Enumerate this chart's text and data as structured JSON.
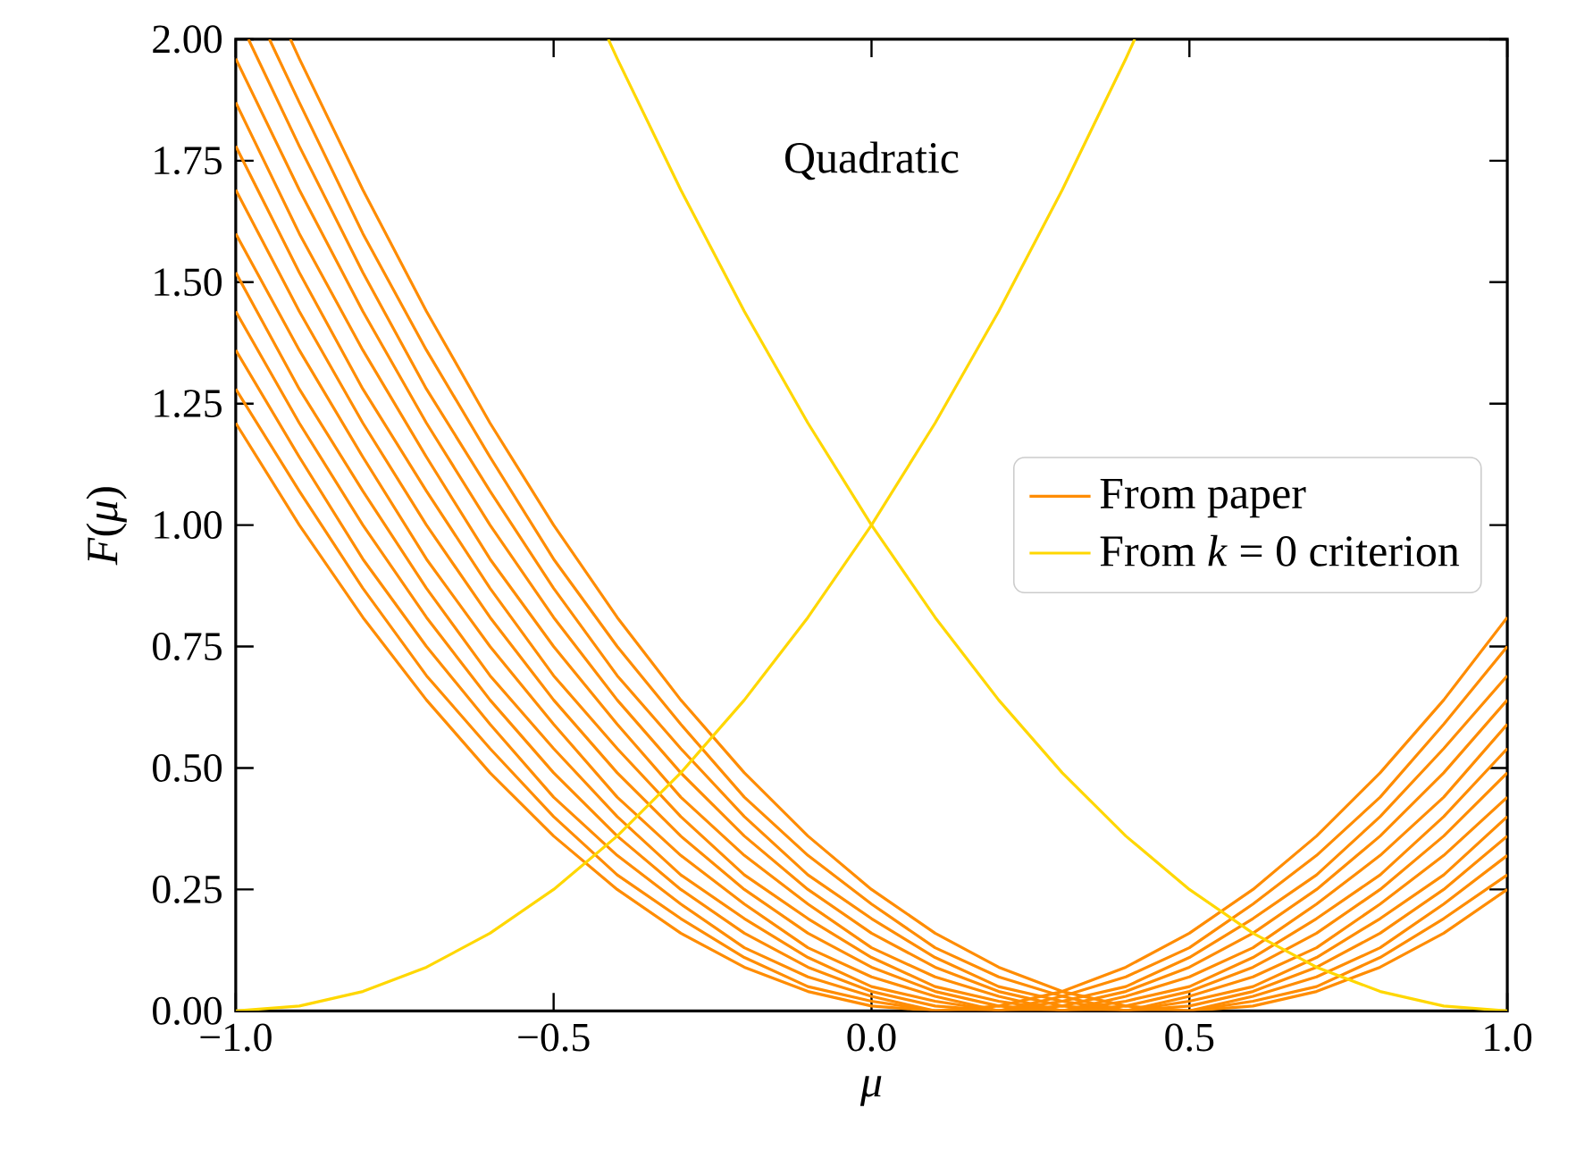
{
  "chart_data": {
    "type": "line",
    "xlabel": "μ",
    "ylabel": "*F*(*μ*)",
    "annotations": [
      "Quadratic"
    ],
    "x": [
      -1,
      -0.9,
      -0.8,
      -0.7,
      -0.6,
      -0.5,
      -0.4,
      -0.3,
      -0.2,
      -0.1,
      0,
      0.1,
      0.2,
      0.3,
      0.4,
      0.5,
      0.6,
      0.7,
      0.8,
      0.9,
      1
    ],
    "series": [
      {
        "name": "From paper",
        "color": "#ff8c00",
        "values": [
          1.21,
          1.0,
          0.81,
          0.64,
          0.49,
          0.36,
          0.25,
          0.16,
          0.09,
          0.04,
          0.01,
          0,
          0.01,
          0.04,
          0.09,
          0.16,
          0.25,
          0.36,
          0.49,
          0.64,
          0.81
        ]
      },
      {
        "color": "#ff8c00",
        "values": [
          1.28,
          1.07,
          0.87,
          0.69,
          0.54,
          0.4,
          0.28,
          0.19,
          0.11,
          0.05,
          0.02,
          0.0,
          0.0,
          0.03,
          0.07,
          0.13,
          0.22,
          0.32,
          0.44,
          0.59,
          0.75
        ]
      },
      {
        "color": "#ff8c00",
        "values": [
          1.36,
          1.14,
          0.93,
          0.75,
          0.59,
          0.44,
          0.32,
          0.22,
          0.13,
          0.07,
          0.03,
          0.0,
          0.0,
          0.02,
          0.05,
          0.11,
          0.19,
          0.28,
          0.4,
          0.54,
          0.69
        ]
      },
      {
        "color": "#ff8c00",
        "values": [
          1.44,
          1.21,
          1.0,
          0.81,
          0.64,
          0.49,
          0.36,
          0.25,
          0.16,
          0.09,
          0.04,
          0.01,
          0,
          0.01,
          0.04,
          0.09,
          0.16,
          0.25,
          0.36,
          0.49,
          0.64
        ]
      },
      {
        "color": "#ff8c00",
        "values": [
          1.52,
          1.28,
          1.07,
          0.87,
          0.69,
          0.54,
          0.4,
          0.28,
          0.19,
          0.11,
          0.05,
          0.02,
          0.0,
          0.0,
          0.03,
          0.07,
          0.13,
          0.22,
          0.32,
          0.44,
          0.59
        ]
      },
      {
        "color": "#ff8c00",
        "values": [
          1.6,
          1.36,
          1.14,
          0.93,
          0.75,
          0.59,
          0.44,
          0.32,
          0.22,
          0.13,
          0.07,
          0.03,
          0.0,
          0.0,
          0.02,
          0.05,
          0.11,
          0.19,
          0.28,
          0.4,
          0.54
        ]
      },
      {
        "color": "#ff8c00",
        "values": [
          1.69,
          1.44,
          1.21,
          1.0,
          0.81,
          0.64,
          0.49,
          0.36,
          0.25,
          0.16,
          0.09,
          0.04,
          0.01,
          0,
          0.01,
          0.04,
          0.09,
          0.16,
          0.25,
          0.36,
          0.49
        ]
      },
      {
        "color": "#ff8c00",
        "values": [
          1.78,
          1.52,
          1.28,
          1.07,
          0.87,
          0.69,
          0.54,
          0.4,
          0.28,
          0.19,
          0.11,
          0.05,
          0.02,
          0.0,
          0.0,
          0.03,
          0.07,
          0.13,
          0.22,
          0.32,
          0.44
        ]
      },
      {
        "color": "#ff8c00",
        "values": [
          1.87,
          1.6,
          1.36,
          1.14,
          0.93,
          0.75,
          0.59,
          0.44,
          0.32,
          0.22,
          0.13,
          0.07,
          0.03,
          0.0,
          0.0,
          0.02,
          0.05,
          0.11,
          0.19,
          0.28,
          0.4
        ]
      },
      {
        "color": "#ff8c00",
        "values": [
          1.96,
          1.69,
          1.44,
          1.21,
          1.0,
          0.81,
          0.64,
          0.49,
          0.36,
          0.25,
          0.16,
          0.09,
          0.04,
          0.01,
          0,
          0.01,
          0.04,
          0.09,
          0.16,
          0.25,
          0.36
        ]
      },
      {
        "color": "#ff8c00",
        "x": [
          -0.98,
          -0.9,
          -0.8,
          -0.7,
          -0.6,
          -0.5,
          -0.4,
          -0.3,
          -0.2,
          -0.1,
          0,
          0.1,
          0.2,
          0.3,
          0.4,
          0.5,
          0.6,
          0.7,
          0.8,
          0.9,
          1
        ],
        "values": [
          2.0,
          1.78,
          1.52,
          1.28,
          1.07,
          0.87,
          0.69,
          0.54,
          0.4,
          0.28,
          0.19,
          0.11,
          0.05,
          0.02,
          0.0,
          0.0,
          0.03,
          0.07,
          0.13,
          0.22,
          0.32
        ]
      },
      {
        "color": "#ff8c00",
        "x": [
          -0.947,
          -0.9,
          -0.8,
          -0.7,
          -0.6,
          -0.5,
          -0.4,
          -0.3,
          -0.2,
          -0.1,
          0,
          0.1,
          0.2,
          0.3,
          0.4,
          0.5,
          0.6,
          0.7,
          0.8,
          0.9,
          1
        ],
        "values": [
          2.0,
          1.87,
          1.6,
          1.36,
          1.14,
          0.93,
          0.75,
          0.59,
          0.44,
          0.32,
          0.22,
          0.13,
          0.07,
          0.03,
          0.0,
          0.0,
          0.02,
          0.05,
          0.11,
          0.19,
          0.28
        ]
      },
      {
        "color": "#ff8c00",
        "x": [
          -0.914,
          -0.9,
          -0.8,
          -0.7,
          -0.6,
          -0.5,
          -0.4,
          -0.3,
          -0.2,
          -0.1,
          0,
          0.1,
          0.2,
          0.3,
          0.4,
          0.5,
          0.6,
          0.7,
          0.8,
          0.9,
          1
        ],
        "values": [
          2.0,
          1.96,
          1.69,
          1.44,
          1.21,
          1.0,
          0.81,
          0.64,
          0.49,
          0.36,
          0.25,
          0.16,
          0.09,
          0.04,
          0.01,
          0,
          0.01,
          0.04,
          0.09,
          0.16,
          0.25
        ]
      },
      {
        "name": "From *k* = 0 criterion",
        "color": "#ffd700",
        "x": [
          -1,
          -0.9,
          -0.8,
          -0.7,
          -0.6,
          -0.5,
          -0.4,
          -0.3,
          -0.2,
          -0.1,
          0,
          0.1,
          0.2,
          0.3,
          0.4,
          0.414
        ],
        "values": [
          0,
          0.01,
          0.04,
          0.09,
          0.16,
          0.25,
          0.36,
          0.49,
          0.64,
          0.81,
          1.0,
          1.21,
          1.44,
          1.69,
          1.96,
          2.0
        ]
      },
      {
        "color": "#ffd700",
        "x": [
          -0.414,
          -0.4,
          -0.3,
          -0.2,
          -0.1,
          0,
          0.1,
          0.2,
          0.3,
          0.4,
          0.5,
          0.6,
          0.7,
          0.8,
          0.9,
          1
        ],
        "values": [
          2.0,
          1.96,
          1.69,
          1.44,
          1.21,
          1.0,
          0.81,
          0.64,
          0.49,
          0.36,
          0.25,
          0.16,
          0.09,
          0.04,
          0.01,
          0
        ]
      }
    ],
    "xlim": [
      -1,
      1
    ],
    "ylim": [
      0,
      2
    ],
    "xticks": [
      {
        "value": -1,
        "label": "−1.0"
      },
      {
        "value": -0.5,
        "label": "−0.5"
      },
      {
        "value": 0,
        "label": "0.0"
      },
      {
        "value": 0.5,
        "label": "0.5"
      },
      {
        "value": 1,
        "label": "1.0"
      }
    ],
    "yticks": [
      {
        "value": 0,
        "label": "0.00"
      },
      {
        "value": 0.25,
        "label": "0.25"
      },
      {
        "value": 0.5,
        "label": "0.50"
      },
      {
        "value": 0.75,
        "label": "0.75"
      },
      {
        "value": 1,
        "label": "1.00"
      },
      {
        "value": 1.25,
        "label": "1.25"
      },
      {
        "value": 1.5,
        "label": "1.50"
      },
      {
        "value": 1.75,
        "label": "1.75"
      },
      {
        "value": 2,
        "label": "2.00"
      }
    ],
    "legend": "right",
    "marker": "none",
    "line_style": "solid"
  }
}
